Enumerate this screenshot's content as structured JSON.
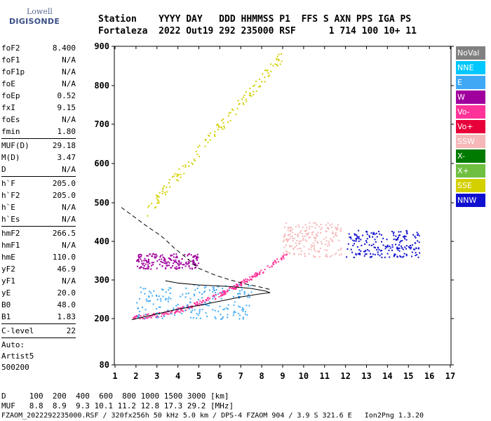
{
  "logo": {
    "line1": "Lowell",
    "line2": "DIGISONDE"
  },
  "header": {
    "row1": "Station    YYYY DAY   DDD HHMMSS P1  FFS S AXN PPS IGA PS",
    "row2": "Fortaleza  2022 Out19 292 235000 RSF      1 714 100 10+ 11"
  },
  "params_group1": [
    {
      "k": "foF2",
      "v": "8.400"
    },
    {
      "k": "foF1",
      "v": "N/A"
    },
    {
      "k": "foF1p",
      "v": "N/A"
    },
    {
      "k": "foE",
      "v": "N/A"
    },
    {
      "k": "foEp",
      "v": "0.52"
    },
    {
      "k": "fxI",
      "v": "9.15"
    },
    {
      "k": "foEs",
      "v": "N/A"
    },
    {
      "k": "fmin",
      "v": "1.80"
    }
  ],
  "params_group2": [
    {
      "k": "MUF(D)",
      "v": "29.18"
    },
    {
      "k": "M(D)",
      "v": "3.47"
    },
    {
      "k": "D",
      "v": "N/A"
    }
  ],
  "params_group3": [
    {
      "k": "h`F",
      "v": "205.0"
    },
    {
      "k": "h`F2",
      "v": "205.0"
    },
    {
      "k": "h`E",
      "v": "N/A"
    },
    {
      "k": "h`Es",
      "v": "N/A"
    }
  ],
  "params_group4": [
    {
      "k": "hmF2",
      "v": "266.5"
    },
    {
      "k": "hmF1",
      "v": "N/A"
    },
    {
      "k": "hmE",
      "v": "110.0"
    },
    {
      "k": "yF2",
      "v": "46.9"
    },
    {
      "k": "yF1",
      "v": "N/A"
    },
    {
      "k": "yE",
      "v": "20.0"
    },
    {
      "k": "B0",
      "v": "48.0"
    },
    {
      "k": "B1",
      "v": "1.83"
    }
  ],
  "params_group5": [
    {
      "k": "C-level",
      "v": "22"
    }
  ],
  "autoscale": {
    "line1": "Auto:",
    "line2": "Artist5",
    "line3": "500200"
  },
  "legend": [
    {
      "label": "NoVal",
      "color": "#808080",
      "text_color": "#ffffff"
    },
    {
      "label": "NNE",
      "color": "#00c8ff",
      "text_color": "#ffffff"
    },
    {
      "label": "E",
      "color": "#3fa9f5",
      "text_color": "#ffffff"
    },
    {
      "label": "W",
      "color": "#a0009e",
      "text_color": "#ffffff"
    },
    {
      "label": "Vo-",
      "color": "#ff3399",
      "text_color": "#ffffff"
    },
    {
      "label": "Vo+",
      "color": "#e8003a",
      "text_color": "#ffffff"
    },
    {
      "label": "SSW",
      "color": "#f5b7b7",
      "text_color": "#ffffff"
    },
    {
      "label": "X-",
      "color": "#007a00",
      "text_color": "#ffffff"
    },
    {
      "label": "X+",
      "color": "#6fbf40",
      "text_color": "#ffffff"
    },
    {
      "label": "SSE",
      "color": "#d4d000",
      "text_color": "#ffffff"
    },
    {
      "label": "NNW",
      "color": "#1010d0",
      "text_color": "#ffffff"
    }
  ],
  "footer": {
    "d_row": "D     100  200  400  600  800 1000 1500 3000 [km]",
    "muf_row": "MUF   8.8  8.9  9.3 10.1 11.2 12.8 17.3 29.2 [MHz]",
    "file_row": "FZAOM_2022292235000.RSF / 320fx256h 50 kHz 5.0 km / DPS-4 FZAOM 904 / 3.9 S 321.6 E   Ion2Png 1.3.20"
  },
  "chart_data": {
    "type": "scatter",
    "title": "",
    "xlabel": "",
    "ylabel": "",
    "xlim": [
      1,
      17
    ],
    "ylim": [
      80,
      900
    ],
    "x_ticks": [
      "1",
      "2",
      "3",
      "4",
      "5",
      "6",
      "7",
      "8",
      "9",
      "10",
      "11",
      "12",
      "13",
      "14",
      "15",
      "16",
      "17"
    ],
    "y_ticks": [
      "80",
      "200",
      "300",
      "400",
      "500",
      "600",
      "700",
      "800",
      "900"
    ],
    "y_tick_values": [
      80,
      200,
      300,
      400,
      500,
      600,
      700,
      800,
      900
    ],
    "y_axis_note": "non-linear scale: 80 and 200 at bottom",
    "o_trace_profile": {
      "series": "profile (solid)",
      "points": [
        [
          1.8,
          197
        ],
        [
          3,
          212
        ],
        [
          4,
          224
        ],
        [
          5,
          234
        ],
        [
          6,
          245
        ],
        [
          7,
          256
        ],
        [
          7.8,
          263
        ],
        [
          8.2,
          266
        ],
        [
          8.4,
          267
        ],
        [
          8.2,
          271
        ],
        [
          7.5,
          278
        ],
        [
          6.5,
          283
        ],
        [
          5,
          287
        ],
        [
          4,
          292
        ],
        [
          3.4,
          298
        ]
      ]
    },
    "x_trace_profile": {
      "series": "profile (dashed)",
      "points": [
        [
          1.3,
          488
        ],
        [
          2,
          460
        ],
        [
          2.6,
          436
        ],
        [
          3.1,
          418
        ],
        [
          3.4,
          405
        ],
        [
          3.8,
          384
        ],
        [
          4.3,
          362
        ],
        [
          5,
          330
        ],
        [
          5.8,
          312
        ],
        [
          6.5,
          300
        ],
        [
          7.2,
          290
        ],
        [
          7.9,
          282
        ],
        [
          8.5,
          274
        ]
      ]
    },
    "echo_series": [
      {
        "name": "Vo- main trace",
        "color_key": "Vo-",
        "x_range": [
          1.8,
          9.2
        ],
        "h_start": 205,
        "h_end": 370
      },
      {
        "name": "E spread",
        "color_key": "E",
        "x_range": [
          2.0,
          7.5
        ],
        "h_range": [
          200,
          290
        ]
      },
      {
        "name": "W oblique",
        "color_key": "W",
        "x_range": [
          2.0,
          5.0
        ],
        "h_range": [
          330,
          370
        ]
      },
      {
        "name": "NNW spread-F",
        "color_key": "NNW",
        "x_range": [
          12,
          15.5
        ],
        "h_range": [
          360,
          430
        ]
      },
      {
        "name": "SSW spread-F",
        "color_key": "SSW",
        "x_range": [
          9,
          11.8
        ],
        "h_range": [
          360,
          450
        ]
      },
      {
        "name": "multiple hop",
        "color_key": "SSE",
        "x_range": [
          2.5,
          9
        ],
        "h_range": [
          480,
          880
        ]
      }
    ]
  }
}
